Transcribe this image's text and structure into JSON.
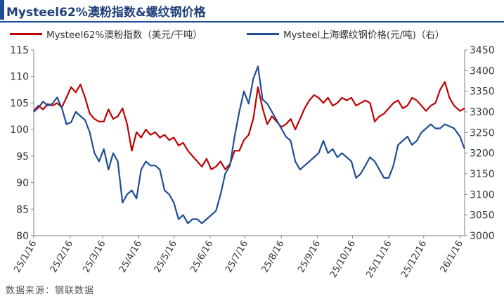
{
  "title": "Mysteel62%澳粉指数&螺纹钢价格",
  "source": "数据来源：钢联数据",
  "colors": {
    "index_series": "#c00000",
    "rebar_series": "#1f4e96",
    "title": "#1f4e96"
  },
  "chart_data": {
    "type": "line",
    "title": "Mysteel62%澳粉指数&螺纹钢价格",
    "legend_position": "top",
    "grid": false,
    "x_ticks": [
      "25/1/16",
      "25/2/16",
      "25/3/16",
      "25/4/16",
      "25/5/16",
      "25/6/16",
      "25/7/16",
      "25/8/16",
      "25/9/16",
      "25/10/16",
      "25/11/16",
      "25/12/16",
      "26/1/16"
    ],
    "y_left": {
      "lim": [
        80,
        115
      ],
      "ticks": [
        80,
        85,
        90,
        95,
        100,
        105,
        110,
        115
      ]
    },
    "y_right": {
      "lim": [
        3000,
        3450
      ],
      "ticks": [
        3000,
        3050,
        3100,
        3150,
        3200,
        3250,
        3300,
        3350,
        3400,
        3450
      ]
    },
    "series": [
      {
        "name": "Mysteel62%澳粉指数（美元/干吨）",
        "axis": "left",
        "x": [
          "2025-01-16",
          "2025-01-20",
          "2025-01-24",
          "2025-01-28",
          "2025-02-01",
          "2025-02-05",
          "2025-02-09",
          "2025-02-13",
          "2025-02-17",
          "2025-02-21",
          "2025-02-25",
          "2025-03-01",
          "2025-03-05",
          "2025-03-09",
          "2025-03-13",
          "2025-03-17",
          "2025-03-21",
          "2025-03-25",
          "2025-03-29",
          "2025-04-02",
          "2025-04-06",
          "2025-04-10",
          "2025-04-14",
          "2025-04-18",
          "2025-04-22",
          "2025-04-26",
          "2025-04-30",
          "2025-05-04",
          "2025-05-08",
          "2025-05-12",
          "2025-05-16",
          "2025-05-20",
          "2025-05-24",
          "2025-05-28",
          "2025-06-01",
          "2025-06-05",
          "2025-06-09",
          "2025-06-13",
          "2025-06-17",
          "2025-06-21",
          "2025-06-25",
          "2025-06-29",
          "2025-07-03",
          "2025-07-07",
          "2025-07-11",
          "2025-07-15",
          "2025-07-19",
          "2025-07-23",
          "2025-07-27",
          "2025-07-31",
          "2025-08-04",
          "2025-08-08",
          "2025-08-12",
          "2025-08-16",
          "2025-08-20",
          "2025-08-24",
          "2025-08-28",
          "2025-09-01",
          "2025-09-05",
          "2025-09-09",
          "2025-09-13",
          "2025-09-17",
          "2025-09-21",
          "2025-09-25",
          "2025-09-29",
          "2025-10-03",
          "2025-10-07",
          "2025-10-11",
          "2025-10-15",
          "2025-10-19",
          "2025-10-23",
          "2025-10-27",
          "2025-10-31",
          "2025-11-04",
          "2025-11-08",
          "2025-11-12",
          "2025-11-16",
          "2025-11-20",
          "2025-11-24",
          "2025-11-28",
          "2025-12-02",
          "2025-12-06",
          "2025-12-10",
          "2025-12-14",
          "2025-12-18",
          "2025-12-22",
          "2025-12-26",
          "2025-12-30",
          "2026-01-03",
          "2026-01-07",
          "2026-01-11",
          "2026-01-16",
          "2026-01-20"
        ],
        "values": [
          103.5,
          104.5,
          103.8,
          104.8,
          104.5,
          105,
          104.2,
          106,
          108,
          107,
          108.5,
          106,
          103,
          102,
          101.5,
          101.5,
          103.8,
          102,
          102.5,
          104,
          101,
          96,
          99.5,
          98.5,
          100,
          99,
          99.5,
          98.5,
          99,
          98,
          98.5,
          97,
          97.5,
          96,
          95,
          94,
          93,
          94.5,
          92.5,
          93,
          94,
          92.5,
          93.5,
          96,
          96,
          98,
          99,
          102,
          108,
          104,
          101,
          102.5,
          101.5,
          100.5,
          101,
          102,
          100,
          102,
          104,
          105.5,
          106.5,
          106,
          105,
          106,
          104.5,
          105,
          106,
          105.5,
          106,
          104.5,
          105,
          105.5,
          105,
          101.5,
          102.5,
          103,
          104,
          105,
          105.5,
          104,
          104.5,
          106,
          105.5,
          104.5,
          103.5,
          104.5,
          105,
          107.5,
          109,
          106,
          104.5,
          103.5,
          104
        ]
      },
      {
        "name": "Mysteel上海螺纹钢价格(元/吨)（右）",
        "axis": "right",
        "x": [
          "2025-01-16",
          "2025-01-20",
          "2025-01-24",
          "2025-01-28",
          "2025-02-01",
          "2025-02-05",
          "2025-02-09",
          "2025-02-13",
          "2025-02-17",
          "2025-02-21",
          "2025-02-25",
          "2025-03-01",
          "2025-03-05",
          "2025-03-09",
          "2025-03-13",
          "2025-03-17",
          "2025-03-21",
          "2025-03-25",
          "2025-03-29",
          "2025-04-02",
          "2025-04-06",
          "2025-04-10",
          "2025-04-14",
          "2025-04-18",
          "2025-04-22",
          "2025-04-26",
          "2025-04-30",
          "2025-05-04",
          "2025-05-08",
          "2025-05-12",
          "2025-05-16",
          "2025-05-20",
          "2025-05-24",
          "2025-05-28",
          "2025-06-01",
          "2025-06-05",
          "2025-06-09",
          "2025-06-13",
          "2025-06-17",
          "2025-06-21",
          "2025-06-25",
          "2025-06-29",
          "2025-07-03",
          "2025-07-07",
          "2025-07-11",
          "2025-07-15",
          "2025-07-19",
          "2025-07-23",
          "2025-07-27",
          "2025-07-31",
          "2025-08-04",
          "2025-08-08",
          "2025-08-12",
          "2025-08-16",
          "2025-08-20",
          "2025-08-24",
          "2025-08-28",
          "2025-09-01",
          "2025-09-05",
          "2025-09-09",
          "2025-09-13",
          "2025-09-17",
          "2025-09-21",
          "2025-09-25",
          "2025-09-29",
          "2025-10-03",
          "2025-10-07",
          "2025-10-11",
          "2025-10-15",
          "2025-10-19",
          "2025-10-23",
          "2025-10-27",
          "2025-10-31",
          "2025-11-04",
          "2025-11-08",
          "2025-11-12",
          "2025-11-16",
          "2025-11-20",
          "2025-11-24",
          "2025-11-28",
          "2025-12-02",
          "2025-12-06",
          "2025-12-10",
          "2025-12-14",
          "2025-12-18",
          "2025-12-22",
          "2025-12-26",
          "2025-12-30",
          "2026-01-03",
          "2026-01-07",
          "2026-01-11",
          "2026-01-16",
          "2026-01-20"
        ],
        "values": [
          3300,
          3310,
          3325,
          3315,
          3320,
          3335,
          3310,
          3270,
          3275,
          3300,
          3290,
          3280,
          3250,
          3200,
          3180,
          3210,
          3160,
          3200,
          3180,
          3080,
          3100,
          3110,
          3090,
          3160,
          3180,
          3170,
          3170,
          3160,
          3110,
          3100,
          3080,
          3040,
          3050,
          3030,
          3040,
          3040,
          3030,
          3040,
          3050,
          3060,
          3100,
          3150,
          3170,
          3240,
          3300,
          3350,
          3320,
          3380,
          3410,
          3330,
          3320,
          3300,
          3280,
          3260,
          3240,
          3230,
          3180,
          3160,
          3170,
          3180,
          3190,
          3200,
          3230,
          3200,
          3210,
          3190,
          3200,
          3190,
          3180,
          3140,
          3150,
          3170,
          3190,
          3180,
          3160,
          3140,
          3140,
          3170,
          3220,
          3230,
          3240,
          3220,
          3230,
          3250,
          3260,
          3270,
          3260,
          3260,
          3270,
          3265,
          3260,
          3240,
          3210
        ]
      }
    ]
  }
}
